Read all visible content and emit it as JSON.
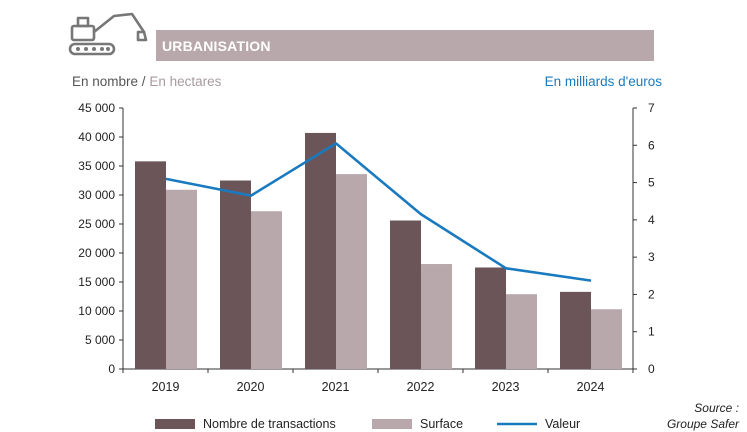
{
  "header": {
    "title": "URBANISATION",
    "left_unit_primary": "En nombre",
    "left_unit_separator": " / ",
    "left_unit_secondary": "En hectares",
    "right_unit": "En milliards d'euros"
  },
  "source": {
    "line1": "Source :",
    "line2": "Groupe Safer"
  },
  "icon": "excavator-icon",
  "colors": {
    "transactions": "#6b5559",
    "surface": "#b8a8ab",
    "valeur": "#1a7abf",
    "banner": "#b8a8ab"
  },
  "chart_data": {
    "type": "bar",
    "title": "URBANISATION",
    "categories": [
      "2019",
      "2020",
      "2021",
      "2022",
      "2023",
      "2024"
    ],
    "series": [
      {
        "name": "Nombre de transactions",
        "type": "bar",
        "axis": "left",
        "values": [
          35800,
          32500,
          40700,
          25600,
          17500,
          13300
        ]
      },
      {
        "name": "Surface",
        "type": "bar",
        "axis": "left",
        "values": [
          30900,
          27200,
          33600,
          18100,
          12900,
          10300
        ]
      },
      {
        "name": "Valeur",
        "type": "line",
        "axis": "right",
        "values": [
          5.1,
          4.65,
          6.05,
          4.15,
          2.7,
          2.37
        ]
      }
    ],
    "left_axis": {
      "label": "En nombre / En hectares",
      "ylim": [
        0,
        45000
      ],
      "ticks": [
        "0",
        "5 000",
        "10 000",
        "15 000",
        "20 000",
        "25 000",
        "30 000",
        "35 000",
        "40 000",
        "45 000"
      ]
    },
    "right_axis": {
      "label": "En milliards d'euros",
      "ylim": [
        0,
        7
      ],
      "ticks": [
        "0",
        "1",
        "2",
        "3",
        "4",
        "5",
        "6",
        "7"
      ]
    },
    "legend": [
      "Nombre de transactions",
      "Surface",
      "Valeur"
    ],
    "legend_position": "bottom",
    "grid": false
  }
}
